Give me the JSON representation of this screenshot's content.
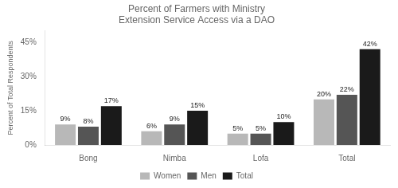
{
  "chart_data": {
    "type": "bar",
    "title": "Percent of Farmers with Ministry\nExtension Service Access via a DAO",
    "ylabel": "Percent of Total Respondents",
    "categories": [
      "Bong",
      "Nimba",
      "Lofa",
      "Total"
    ],
    "series": [
      {
        "name": "Women",
        "color": "#b8b8b8",
        "values": [
          9,
          6,
          5,
          20
        ],
        "value_labels": [
          "9%",
          "6%",
          "5%",
          "20%"
        ]
      },
      {
        "name": "Men",
        "color": "#555555",
        "values": [
          8,
          9,
          5,
          22
        ],
        "value_labels": [
          "8%",
          "9%",
          "5%",
          "22%"
        ]
      },
      {
        "name": "Total",
        "color": "#1a1a1a",
        "values": [
          17,
          15,
          10,
          42
        ],
        "value_labels": [
          "17%",
          "15%",
          "10%",
          "42%"
        ]
      }
    ],
    "ylim": [
      0,
      50
    ],
    "yticks": [
      {
        "value": 0,
        "label": "0%"
      },
      {
        "value": 15,
        "label": "15%"
      },
      {
        "value": 30,
        "label": "30%"
      },
      {
        "value": 45,
        "label": "45%"
      }
    ],
    "grid": false,
    "legend": "bottom",
    "data_labels": true
  }
}
